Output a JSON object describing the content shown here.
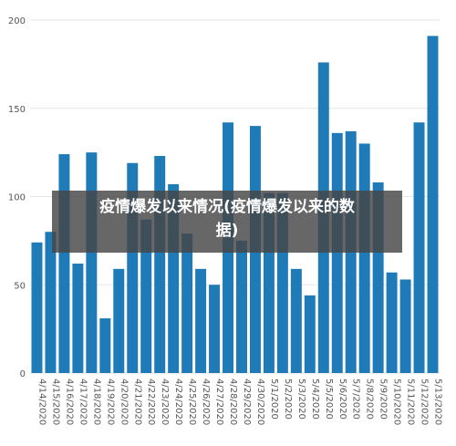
{
  "chart_data": {
    "type": "bar",
    "categories": [
      "4/14/2020",
      "4/15/2020",
      "4/16/2020",
      "4/17/2020",
      "4/18/2020",
      "4/19/2020",
      "4/20/2020",
      "4/21/2020",
      "4/22/2020",
      "4/23/2020",
      "4/24/2020",
      "4/25/2020",
      "4/26/2020",
      "4/27/2020",
      "4/28/2020",
      "4/29/2020",
      "4/30/2020",
      "5/1/2020",
      "5/2/2020",
      "5/3/2020",
      "5/4/2020",
      "5/5/2020",
      "5/6/2020",
      "5/7/2020",
      "5/8/2020",
      "5/9/2020",
      "5/10/2020",
      "5/11/2020",
      "5/12/2020",
      "5/13/2020"
    ],
    "values": [
      74,
      80,
      124,
      62,
      125,
      31,
      59,
      119,
      87,
      123,
      107,
      79,
      59,
      50,
      142,
      75,
      140,
      102,
      102,
      59,
      44,
      176,
      136,
      137,
      130,
      108,
      57,
      53,
      142,
      191
    ],
    "ylim": [
      0,
      200
    ],
    "yticks": [
      0,
      50,
      100,
      150,
      200
    ],
    "grid": true,
    "bar_color": "#1f7ab8"
  },
  "overlay": {
    "line1": "疫情爆发以来情况(疫情爆发以来的数",
    "line2": "据)"
  }
}
